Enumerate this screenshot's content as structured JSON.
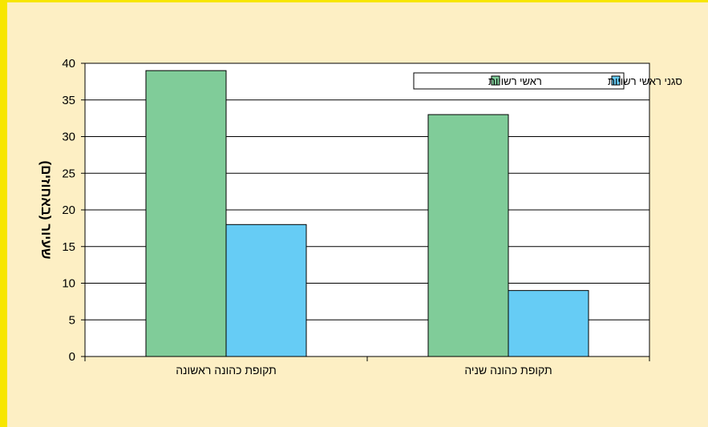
{
  "chart_data": {
    "type": "bar",
    "categories": [
      "תקופת כהונה ראשונה",
      "תקופת כהונה שניה"
    ],
    "series": [
      {
        "name": "ראשי רשויות",
        "values": [
          39,
          33
        ],
        "color": "#80cc99"
      },
      {
        "name": "סגני ראשי רשויות",
        "values": [
          18,
          9
        ],
        "color": "#66ccf5"
      }
    ],
    "title": "",
    "xlabel": "",
    "ylabel": "שעיור (באחוזים)",
    "ylim": [
      0,
      40
    ],
    "yticks": [
      0,
      5,
      10,
      15,
      20,
      25,
      30,
      35,
      40
    ],
    "grid": true,
    "legend_position": "top-right"
  },
  "colors": {
    "background": "#fdefc4",
    "frame_border": "#f7e600",
    "plot_area": "#ffffff"
  }
}
